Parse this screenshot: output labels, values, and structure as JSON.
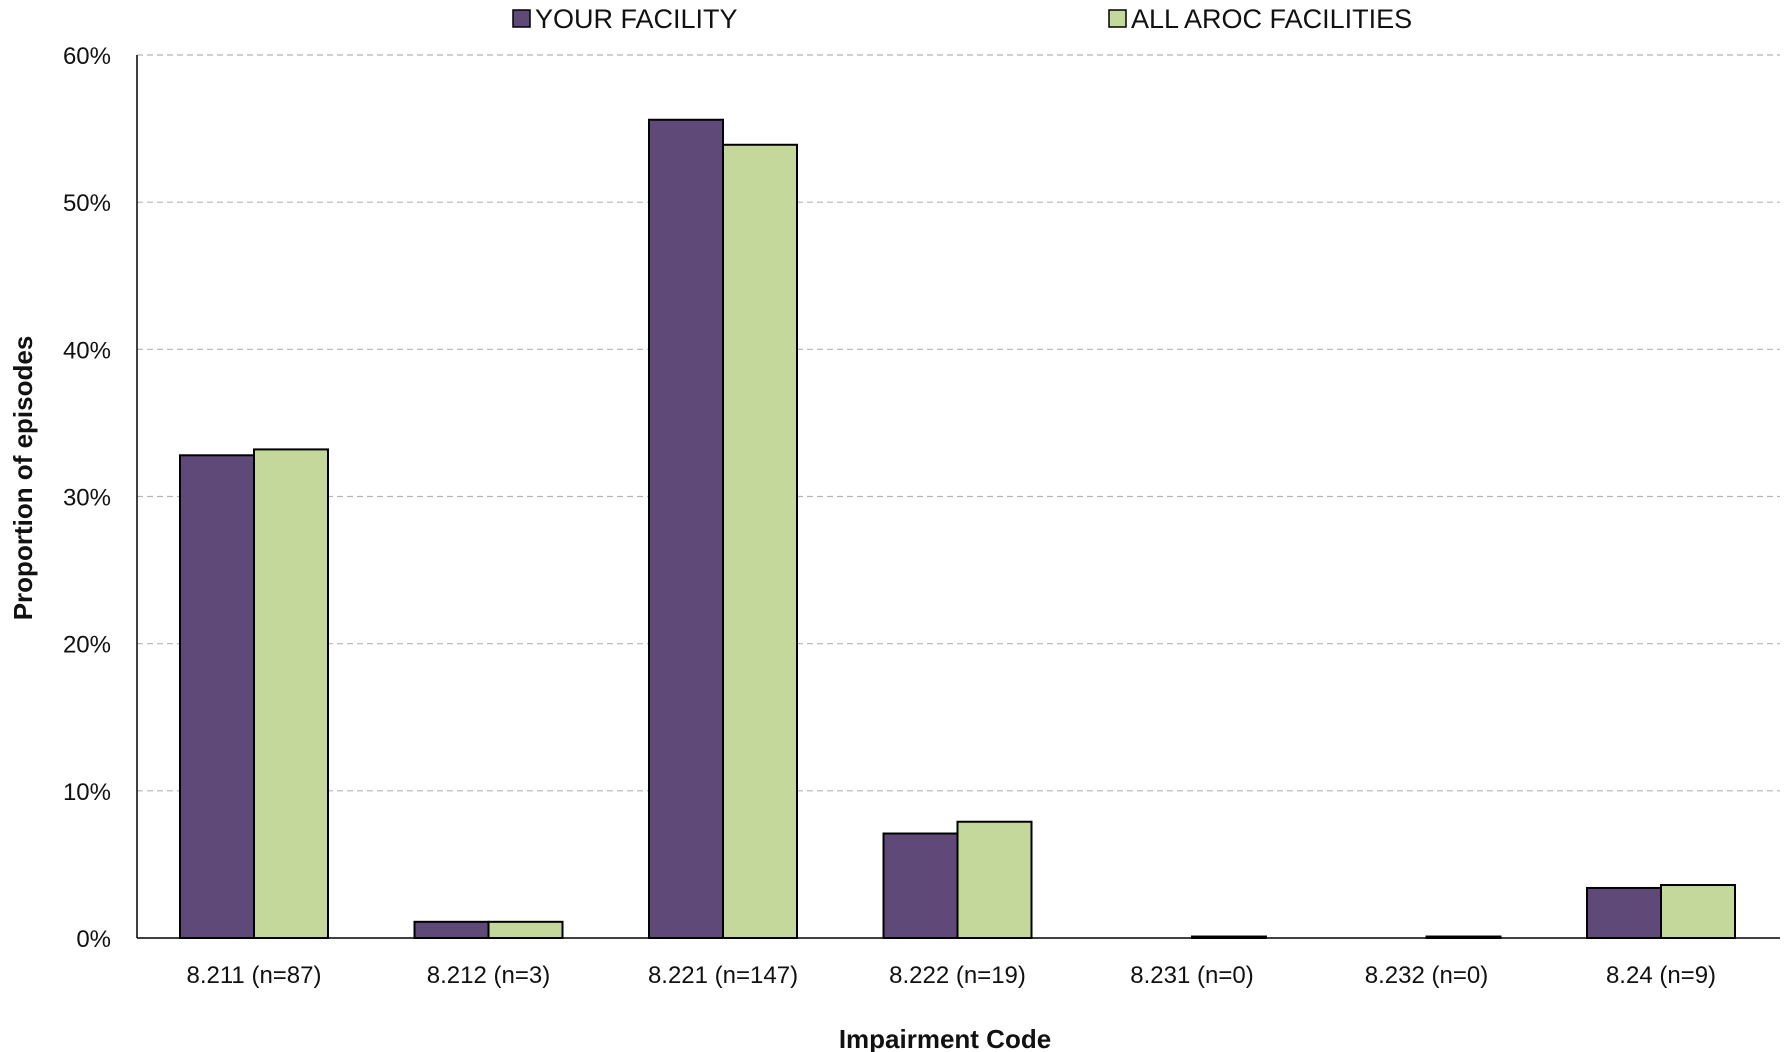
{
  "chart_data": {
    "type": "bar",
    "title": "",
    "xlabel": "Impairment Code",
    "ylabel": "Proportion of episodes",
    "categories": [
      "8.211 (n=87)",
      "8.212 (n=3)",
      "8.221 (n=147)",
      "8.222 (n=19)",
      "8.231 (n=0)",
      "8.232 (n=0)",
      "8.24 (n=9)"
    ],
    "series": [
      {
        "name": "YOUR FACILITY",
        "color": "#5f4978",
        "values": [
          32.8,
          1.1,
          55.6,
          7.1,
          0.0,
          0.0,
          3.4
        ]
      },
      {
        "name": "ALL AROC FACILITIES",
        "color": "#c4d89c",
        "values": [
          33.2,
          1.1,
          53.9,
          7.9,
          0.1,
          0.1,
          3.6
        ]
      }
    ],
    "ylim": [
      0,
      60
    ],
    "yticks": [
      0,
      10,
      20,
      30,
      40,
      50,
      60
    ],
    "ytick_labels": [
      "0%",
      "10%",
      "20%",
      "30%",
      "40%",
      "50%",
      "60%"
    ],
    "grid": true,
    "legend_position": "top"
  }
}
